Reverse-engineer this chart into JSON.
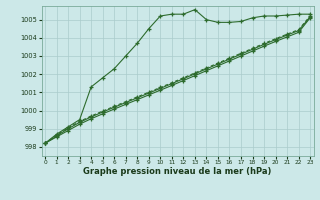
{
  "xlabel": "Graphe pression niveau de la mer (hPa)",
  "background_color": "#cce8e8",
  "grid_color": "#aacccc",
  "line_color": "#2d6b2d",
  "ylim": [
    997.5,
    1005.75
  ],
  "xlim": [
    -0.3,
    23.3
  ],
  "yticks": [
    998,
    999,
    1000,
    1001,
    1002,
    1003,
    1004,
    1005
  ],
  "xticks": [
    0,
    1,
    2,
    3,
    4,
    5,
    6,
    7,
    8,
    9,
    10,
    11,
    12,
    13,
    14,
    15,
    16,
    17,
    18,
    19,
    20,
    21,
    22,
    23
  ],
  "series1": {
    "x": [
      0,
      1,
      2,
      3,
      4,
      5,
      6,
      7,
      8,
      9,
      10,
      11,
      12,
      13,
      14,
      15,
      16,
      17,
      18,
      19,
      20,
      21,
      22,
      23
    ],
    "y": [
      998.2,
      998.7,
      999.1,
      999.5,
      1001.3,
      1001.8,
      1002.3,
      1003.0,
      1003.7,
      1004.5,
      1005.2,
      1005.3,
      1005.3,
      1005.55,
      1005.0,
      1004.85,
      1004.85,
      1004.9,
      1005.1,
      1005.2,
      1005.2,
      1005.25,
      1005.3,
      1005.3
    ]
  },
  "series2": {
    "x": [
      0,
      1,
      2,
      3,
      4,
      5,
      6,
      7,
      8,
      9,
      10,
      11,
      12,
      13,
      14,
      15,
      16,
      17,
      18,
      19,
      20,
      21,
      22,
      23
    ],
    "y": [
      998.2,
      998.55,
      998.9,
      999.25,
      999.55,
      999.82,
      1000.08,
      1000.34,
      1000.6,
      1000.86,
      1001.12,
      1001.38,
      1001.65,
      1001.92,
      1002.19,
      1002.46,
      1002.73,
      1003.0,
      1003.27,
      1003.54,
      1003.8,
      1004.05,
      1004.3,
      1005.1
    ]
  },
  "series3": {
    "x": [
      0,
      1,
      2,
      3,
      4,
      5,
      6,
      7,
      8,
      9,
      10,
      11,
      12,
      13,
      14,
      15,
      16,
      17,
      18,
      19,
      20,
      21,
      22,
      23
    ],
    "y": [
      998.2,
      998.6,
      999.0,
      999.35,
      999.65,
      999.92,
      1000.18,
      1000.44,
      1000.7,
      1000.96,
      1001.22,
      1001.48,
      1001.75,
      1002.02,
      1002.29,
      1002.56,
      1002.83,
      1003.1,
      1003.37,
      1003.64,
      1003.9,
      1004.15,
      1004.4,
      1005.15
    ]
  },
  "series4": {
    "x": [
      0,
      1,
      2,
      3,
      4,
      5,
      6,
      7,
      8,
      9,
      10,
      11,
      12,
      13,
      14,
      15,
      16,
      17,
      18,
      19,
      20,
      21,
      22,
      23
    ],
    "y": [
      998.2,
      998.65,
      999.05,
      999.4,
      999.7,
      999.97,
      1000.23,
      1000.49,
      1000.75,
      1001.01,
      1001.27,
      1001.53,
      1001.8,
      1002.07,
      1002.34,
      1002.61,
      1002.88,
      1003.15,
      1003.42,
      1003.69,
      1003.95,
      1004.2,
      1004.45,
      1005.2
    ]
  }
}
